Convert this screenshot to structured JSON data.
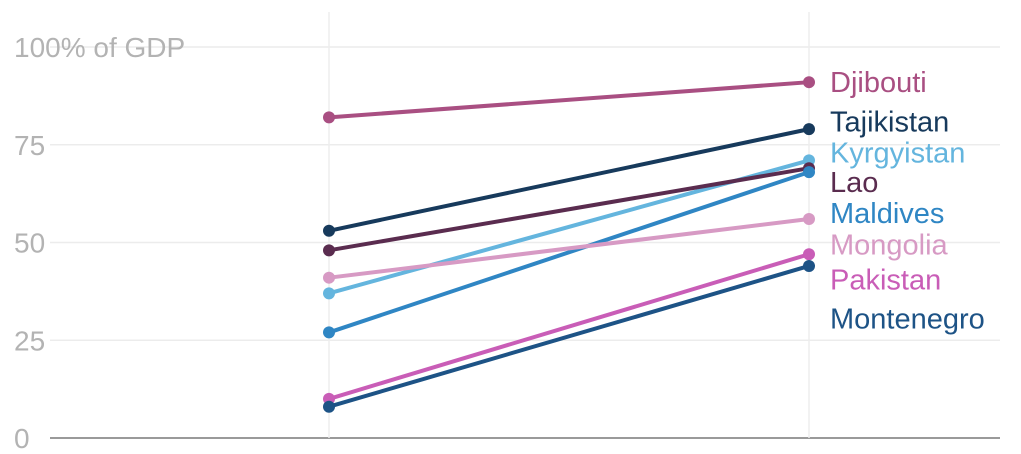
{
  "chart_data": {
    "type": "line",
    "title": "",
    "xlabel": "",
    "ylabel": "",
    "categories": [
      "",
      ""
    ],
    "ylim": [
      0,
      100
    ],
    "yticks": [
      {
        "value": 0,
        "label": "0"
      },
      {
        "value": 25,
        "label": "25"
      },
      {
        "value": 50,
        "label": "50"
      },
      {
        "value": 75,
        "label": "75"
      },
      {
        "value": 100,
        "label": "100% of GDP"
      }
    ],
    "grid": true,
    "legend": "right",
    "series": [
      {
        "name": "Djibouti",
        "values": [
          82,
          91
        ],
        "color": "#a94f82",
        "labelY": 91
      },
      {
        "name": "Tajikistan",
        "values": [
          53,
          79
        ],
        "color": "#173a5c",
        "labelY": 81
      },
      {
        "name": "Kyrgyistan",
        "values": [
          37,
          71
        ],
        "color": "#64b5de",
        "labelY": 73
      },
      {
        "name": "Lao",
        "values": [
          48,
          69
        ],
        "color": "#5a2c4f",
        "labelY": 65.5
      },
      {
        "name": "Maldives",
        "values": [
          27,
          68
        ],
        "color": "#2f86c4",
        "labelY": 57.5
      },
      {
        "name": "Mongolia",
        "values": [
          41,
          56
        ],
        "color": "#d79ac4",
        "labelY": 49.5
      },
      {
        "name": "Pakistan",
        "values": [
          10,
          47
        ],
        "color": "#c95db7",
        "labelY": 40.5
      },
      {
        "name": "Montenegro",
        "values": [
          8,
          44
        ],
        "color": "#1d5386",
        "labelY": 30.5
      }
    ]
  }
}
